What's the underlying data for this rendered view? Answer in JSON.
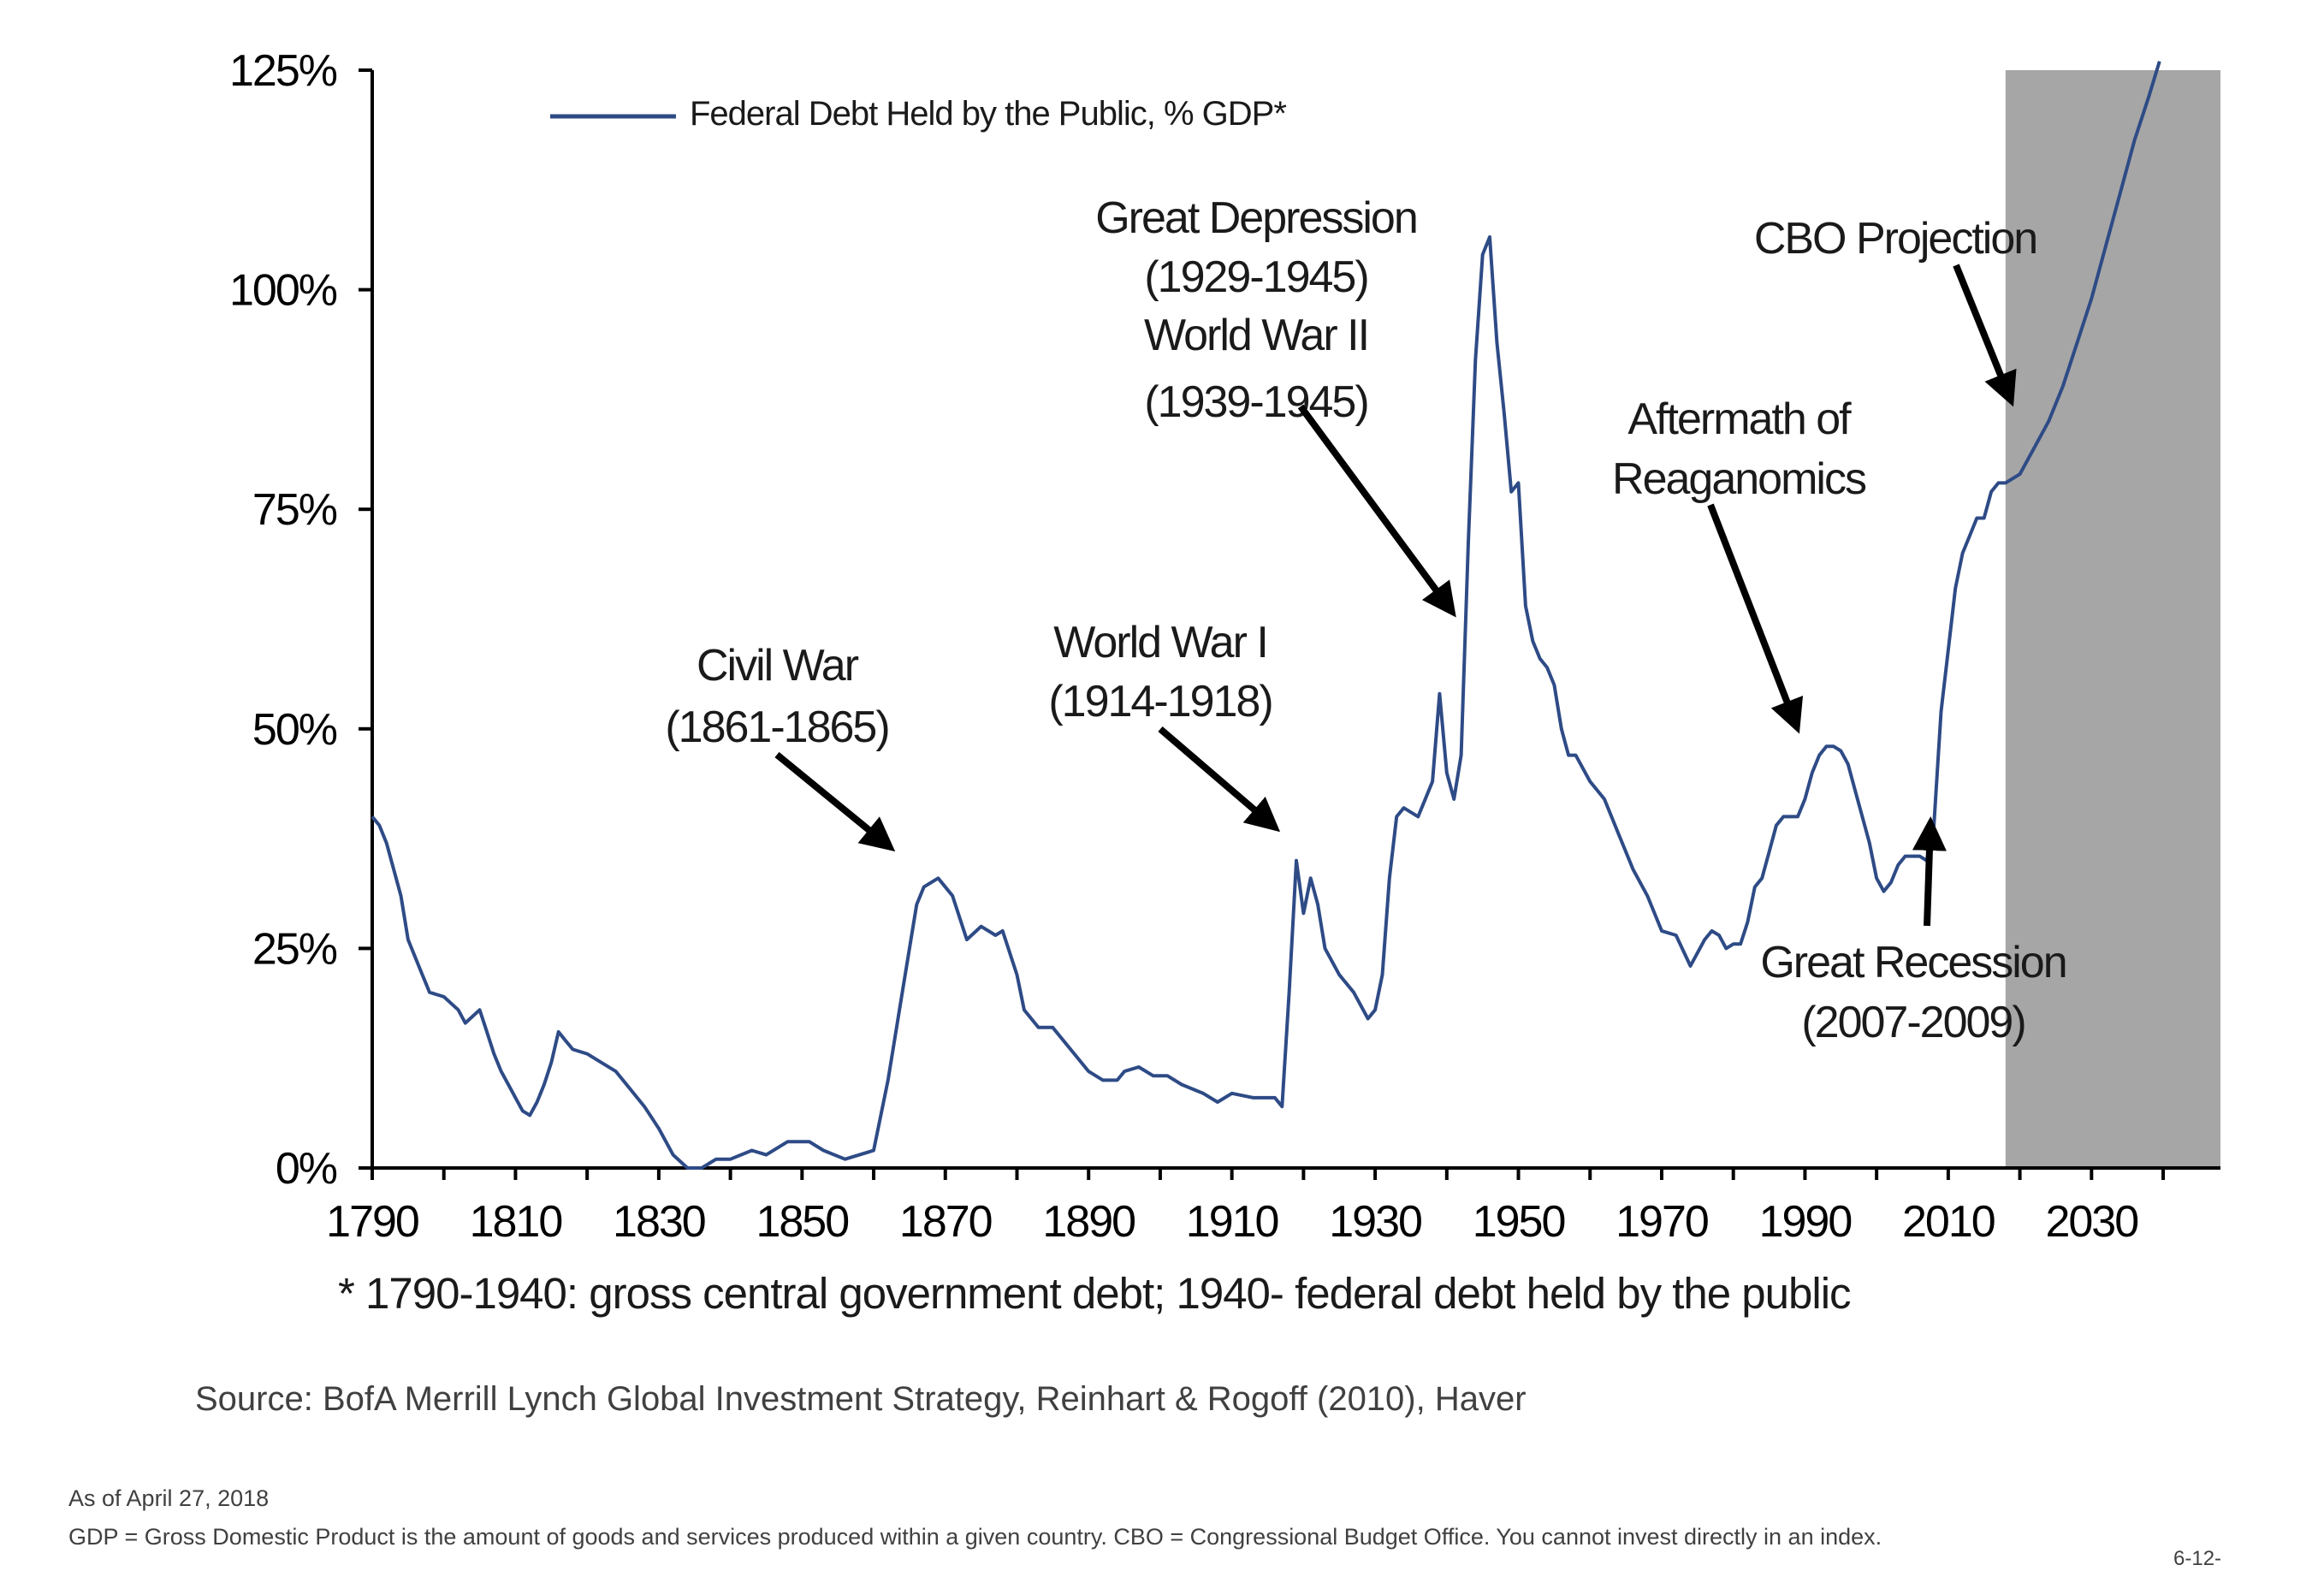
{
  "chart_data": {
    "type": "line",
    "legend": {
      "label": "Federal Debt Held by the Public, % GDP*",
      "position": "top-left"
    },
    "x_range": [
      1790,
      2048
    ],
    "ylim": [
      0,
      125
    ],
    "x_ticks": [
      "1790",
      "1810",
      "1830",
      "1850",
      "1870",
      "1890",
      "1910",
      "1930",
      "1950",
      "1970",
      "1990",
      "2010",
      "2030"
    ],
    "y_ticks": [
      "0%",
      "25%",
      "50%",
      "75%",
      "100%",
      "125%"
    ],
    "y_tick_values": [
      0,
      25,
      50,
      75,
      100,
      125
    ],
    "grid": false,
    "line_color": "#2e4b86",
    "shaded_region": {
      "label": "CBO Projection",
      "x_start": 2018,
      "x_end": 2048,
      "color": "#a6a6a6"
    },
    "series": [
      {
        "name": "Federal Debt Held by the Public, % GDP*",
        "points": [
          [
            1790,
            40
          ],
          [
            1791,
            39
          ],
          [
            1792,
            37
          ],
          [
            1794,
            31
          ],
          [
            1795,
            26
          ],
          [
            1797,
            22
          ],
          [
            1798,
            20
          ],
          [
            1800,
            19.5
          ],
          [
            1802,
            18
          ],
          [
            1803,
            16.5
          ],
          [
            1805,
            18
          ],
          [
            1806,
            15.5
          ],
          [
            1807,
            13
          ],
          [
            1808,
            11
          ],
          [
            1809,
            9.5
          ],
          [
            1810,
            8
          ],
          [
            1811,
            6.5
          ],
          [
            1812,
            6
          ],
          [
            1813,
            7.5
          ],
          [
            1814,
            9.5
          ],
          [
            1815,
            12
          ],
          [
            1816,
            15.5
          ],
          [
            1817,
            14.5
          ],
          [
            1818,
            13.5
          ],
          [
            1820,
            13
          ],
          [
            1822,
            12
          ],
          [
            1824,
            11
          ],
          [
            1826,
            9
          ],
          [
            1828,
            7
          ],
          [
            1830,
            4.5
          ],
          [
            1832,
            1.5
          ],
          [
            1834,
            0
          ],
          [
            1836,
            0
          ],
          [
            1838,
            1
          ],
          [
            1840,
            1
          ],
          [
            1843,
            2
          ],
          [
            1845,
            1.5
          ],
          [
            1848,
            3
          ],
          [
            1851,
            3
          ],
          [
            1853,
            2
          ],
          [
            1856,
            1
          ],
          [
            1860,
            2
          ],
          [
            1862,
            10
          ],
          [
            1864,
            20
          ],
          [
            1866,
            30
          ],
          [
            1867,
            32
          ],
          [
            1869,
            33
          ],
          [
            1871,
            31
          ],
          [
            1873,
            26
          ],
          [
            1875,
            27.5
          ],
          [
            1877,
            26.5
          ],
          [
            1878,
            27
          ],
          [
            1880,
            22
          ],
          [
            1881,
            18
          ],
          [
            1883,
            16
          ],
          [
            1885,
            16
          ],
          [
            1888,
            13
          ],
          [
            1890,
            11
          ],
          [
            1892,
            10
          ],
          [
            1894,
            10
          ],
          [
            1895,
            11
          ],
          [
            1897,
            11.5
          ],
          [
            1899,
            10.5
          ],
          [
            1901,
            10.5
          ],
          [
            1903,
            9.5
          ],
          [
            1906,
            8.5
          ],
          [
            1908,
            7.5
          ],
          [
            1910,
            8.5
          ],
          [
            1913,
            8
          ],
          [
            1916,
            8
          ],
          [
            1917,
            7
          ],
          [
            1918,
            20
          ],
          [
            1919,
            35
          ],
          [
            1920,
            29
          ],
          [
            1921,
            33
          ],
          [
            1922,
            30
          ],
          [
            1923,
            25
          ],
          [
            1925,
            22
          ],
          [
            1927,
            20
          ],
          [
            1929,
            17
          ],
          [
            1930,
            18
          ],
          [
            1931,
            22
          ],
          [
            1932,
            33
          ],
          [
            1933,
            40
          ],
          [
            1934,
            41
          ],
          [
            1936,
            40
          ],
          [
            1938,
            44
          ],
          [
            1939,
            54
          ],
          [
            1940,
            45
          ],
          [
            1941,
            42
          ],
          [
            1942,
            47
          ],
          [
            1943,
            71
          ],
          [
            1944,
            92
          ],
          [
            1945,
            104
          ],
          [
            1946,
            106
          ],
          [
            1947,
            94
          ],
          [
            1948,
            86
          ],
          [
            1949,
            77
          ],
          [
            1950,
            78
          ],
          [
            1951,
            64
          ],
          [
            1952,
            60
          ],
          [
            1953,
            58
          ],
          [
            1954,
            57
          ],
          [
            1955,
            55
          ],
          [
            1956,
            50
          ],
          [
            1957,
            47
          ],
          [
            1958,
            47
          ],
          [
            1960,
            44
          ],
          [
            1962,
            42
          ],
          [
            1964,
            38
          ],
          [
            1966,
            34
          ],
          [
            1968,
            31
          ],
          [
            1970,
            27
          ],
          [
            1972,
            26.5
          ],
          [
            1974,
            23
          ],
          [
            1976,
            26
          ],
          [
            1977,
            27
          ],
          [
            1978,
            26.5
          ],
          [
            1979,
            25
          ],
          [
            1980,
            25.5
          ],
          [
            1981,
            25.5
          ],
          [
            1982,
            28
          ],
          [
            1983,
            32
          ],
          [
            1984,
            33
          ],
          [
            1985,
            36
          ],
          [
            1986,
            39
          ],
          [
            1987,
            40
          ],
          [
            1988,
            40
          ],
          [
            1989,
            40
          ],
          [
            1990,
            42
          ],
          [
            1991,
            45
          ],
          [
            1992,
            47
          ],
          [
            1993,
            48
          ],
          [
            1994,
            48
          ],
          [
            1995,
            47.5
          ],
          [
            1996,
            46
          ],
          [
            1997,
            43
          ],
          [
            1998,
            40
          ],
          [
            1999,
            37
          ],
          [
            2000,
            33
          ],
          [
            2001,
            31.5
          ],
          [
            2002,
            32.5
          ],
          [
            2003,
            34.5
          ],
          [
            2004,
            35.5
          ],
          [
            2005,
            35.5
          ],
          [
            2006,
            35.5
          ],
          [
            2007,
            35
          ],
          [
            2008,
            39
          ],
          [
            2009,
            52
          ],
          [
            2010,
            59
          ],
          [
            2011,
            66
          ],
          [
            2012,
            70
          ],
          [
            2013,
            72
          ],
          [
            2014,
            74
          ],
          [
            2015,
            74
          ],
          [
            2016,
            77
          ],
          [
            2017,
            78
          ],
          [
            2018,
            78
          ],
          [
            2020,
            79
          ],
          [
            2022,
            82
          ],
          [
            2024,
            85
          ],
          [
            2026,
            89
          ],
          [
            2028,
            94
          ],
          [
            2030,
            99
          ],
          [
            2032,
            105
          ],
          [
            2034,
            111
          ],
          [
            2036,
            117
          ],
          [
            2038,
            122
          ],
          [
            2039.5,
            126
          ]
        ]
      }
    ],
    "annotations": [
      {
        "name": "civil-war",
        "lines": [
          "Civil War",
          "(1861-1865)"
        ]
      },
      {
        "name": "world-war-1",
        "lines": [
          "World War I",
          "(1914-1918)"
        ]
      },
      {
        "name": "great-depression-ww2",
        "lines": [
          "Great Depression",
          "(1929-1945)",
          "World War II",
          "(1939-1945)"
        ]
      },
      {
        "name": "reaganomics",
        "lines": [
          "Aftermath of",
          "Reaganomics"
        ]
      },
      {
        "name": "cbo-projection",
        "lines": [
          "CBO Projection"
        ]
      },
      {
        "name": "great-recession",
        "lines": [
          "Great Recession",
          "(2007-2009)"
        ]
      }
    ]
  },
  "footnote": "* 1790-1940: gross central government debt; 1940- federal debt held by the public",
  "source": "Source:  BofA Merrill Lynch Global Investment Strategy, Reinhart & Rogoff  (2010),  Haver",
  "as_of": "As of April 27, 2018",
  "gdp_definition": "GDP = Gross Domestic Product is the amount of goods and services produced within a given country. CBO = Congressional Budget Office. You cannot invest directly in an index.",
  "page_number": "6-12-"
}
